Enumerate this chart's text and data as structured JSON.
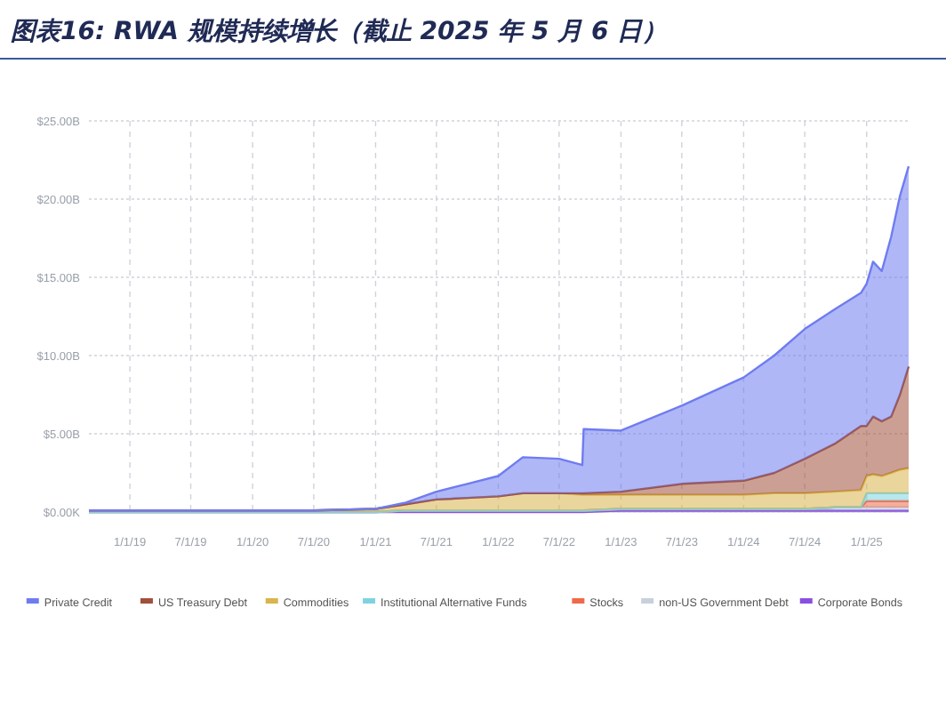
{
  "chart_data": {
    "type": "area",
    "stacked": true,
    "title": "图表16: RWA 规模持续增长（截止 2025 年 5 月 6 日）",
    "x": [
      "2018-09-01",
      "2019-01-01",
      "2019-07-01",
      "2020-01-01",
      "2020-07-01",
      "2021-01-01",
      "2021-04-01",
      "2021-07-01",
      "2021-10-01",
      "2022-01-01",
      "2022-03-15",
      "2022-07-01",
      "2022-09-08",
      "2022-09-12",
      "2023-01-01",
      "2023-07-01",
      "2024-01-01",
      "2024-04-01",
      "2024-07-01",
      "2024-10-01",
      "2024-12-15",
      "2025-01-01",
      "2025-01-20",
      "2025-02-15",
      "2025-03-15",
      "2025-04-10",
      "2025-05-06"
    ],
    "series": [
      {
        "name": "Corporate Bonds",
        "color": "#8a4fe0",
        "values": [
          0,
          0,
          0,
          0,
          0,
          0,
          0,
          0,
          0,
          0,
          0,
          0,
          0,
          0,
          0.1,
          0.1,
          0.1,
          0.1,
          0.1,
          0.1,
          0.1,
          0.1,
          0.1,
          0.1,
          0.1,
          0.1,
          0.1
        ]
      },
      {
        "name": "non-US Government Debt",
        "color": "#c8d0dc",
        "values": [
          0,
          0,
          0,
          0,
          0,
          0,
          0.1,
          0.1,
          0.1,
          0.1,
          0.1,
          0.1,
          0.1,
          0.1,
          0.1,
          0.1,
          0.1,
          0.1,
          0.1,
          0.2,
          0.2,
          0.2,
          0.2,
          0.2,
          0.2,
          0.2,
          0.2
        ]
      },
      {
        "name": "Stocks",
        "color": "#f06a4a",
        "values": [
          0,
          0,
          0,
          0,
          0,
          0,
          0,
          0,
          0,
          0,
          0,
          0,
          0,
          0,
          0,
          0,
          0,
          0,
          0,
          0,
          0,
          0.4,
          0.4,
          0.4,
          0.4,
          0.4,
          0.4
        ]
      },
      {
        "name": "Institutional Alternative Funds",
        "color": "#7fd3e0",
        "values": [
          0,
          0,
          0,
          0,
          0,
          0,
          0,
          0,
          0,
          0,
          0,
          0,
          0,
          0,
          0,
          0,
          0,
          0,
          0,
          0,
          0,
          0.5,
          0.5,
          0.5,
          0.5,
          0.5,
          0.5
        ]
      },
      {
        "name": "Commodities",
        "color": "#d9b54a",
        "values": [
          0.1,
          0.1,
          0.1,
          0.1,
          0.1,
          0.2,
          0.4,
          0.7,
          0.8,
          0.9,
          1.1,
          1.1,
          1.0,
          1.0,
          0.9,
          0.9,
          0.9,
          1.0,
          1.0,
          1.0,
          1.1,
          1.1,
          1.2,
          1.1,
          1.3,
          1.5,
          1.6
        ]
      },
      {
        "name": "US Treasury Debt",
        "color": "#a0503c",
        "values": [
          0,
          0,
          0,
          0,
          0,
          0,
          0,
          0,
          0,
          0,
          0,
          0,
          0.1,
          0.1,
          0.2,
          0.7,
          0.9,
          1.3,
          2.2,
          3.1,
          4.1,
          3.2,
          3.7,
          3.5,
          3.6,
          4.8,
          6.5
        ]
      },
      {
        "name": "Private Credit",
        "color": "#6f7cf0",
        "values": [
          0,
          0,
          0,
          0,
          0,
          0,
          0.1,
          0.5,
          0.9,
          1.3,
          2.3,
          2.2,
          1.8,
          4.1,
          3.9,
          5.0,
          6.6,
          7.5,
          8.3,
          8.6,
          8.5,
          9.1,
          9.9,
          9.6,
          11.5,
          12.7,
          12.8
        ]
      }
    ],
    "xlim": [
      "2018-09-01",
      "2025-05-06"
    ],
    "xticks": [
      {
        "value": "2019-01-01",
        "label": "1/1/19"
      },
      {
        "value": "2019-07-01",
        "label": "7/1/19"
      },
      {
        "value": "2020-01-01",
        "label": "1/1/20"
      },
      {
        "value": "2020-07-01",
        "label": "7/1/20"
      },
      {
        "value": "2021-01-01",
        "label": "1/1/21"
      },
      {
        "value": "2021-07-01",
        "label": "7/1/21"
      },
      {
        "value": "2022-01-01",
        "label": "1/1/22"
      },
      {
        "value": "2022-07-01",
        "label": "7/1/22"
      },
      {
        "value": "2023-01-01",
        "label": "1/1/23"
      },
      {
        "value": "2023-07-01",
        "label": "7/1/23"
      },
      {
        "value": "2024-01-01",
        "label": "1/1/24"
      },
      {
        "value": "2024-07-01",
        "label": "7/1/24"
      },
      {
        "value": "2025-01-01",
        "label": "1/1/25"
      }
    ],
    "ylim": [
      0,
      25
    ],
    "yticks": [
      {
        "value": 0,
        "label": "$0.00K"
      },
      {
        "value": 5,
        "label": "$5.00B"
      },
      {
        "value": 10,
        "label": "$10.00B"
      },
      {
        "value": 15,
        "label": "$15.00B"
      },
      {
        "value": 20,
        "label": "$20.00B"
      },
      {
        "value": 25,
        "label": "$25.00B"
      }
    ],
    "grid": true,
    "legend": "bottom"
  }
}
